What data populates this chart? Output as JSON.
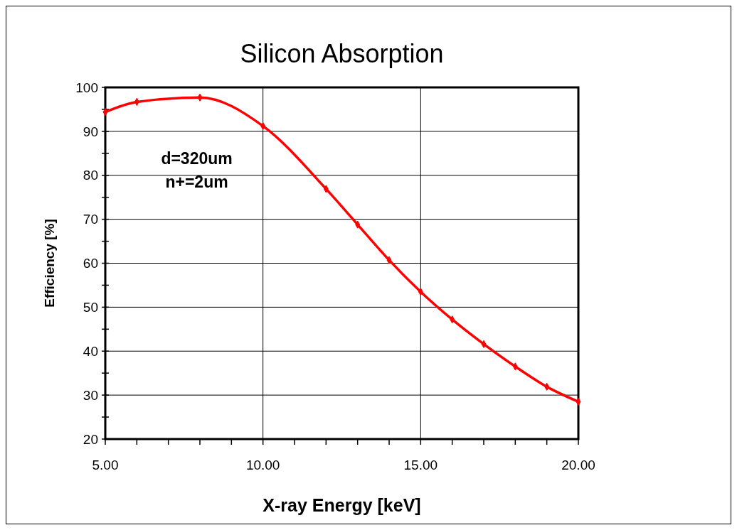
{
  "chart_data": {
    "type": "line",
    "title": "Silicon Absorption",
    "xlabel": "X-ray Energy [keV]",
    "ylabel": "Efficiency [%]",
    "x": [
      5,
      6,
      8,
      10,
      12,
      13,
      14,
      15,
      16,
      17,
      18,
      19,
      20
    ],
    "series": [
      {
        "color": "#ff0000",
        "values": [
          94.4,
          96.7,
          97.7,
          91.2,
          76.9,
          68.8,
          60.7,
          53.5,
          47.2,
          41.6,
          36.5,
          31.9,
          28.5
        ]
      }
    ],
    "xlim": [
      5,
      20
    ],
    "ylim": [
      20,
      100
    ],
    "xticks": [
      {
        "value": 5,
        "label": "5.00"
      },
      {
        "value": 6,
        "label": null
      },
      {
        "value": 7,
        "label": null
      },
      {
        "value": 8,
        "label": null
      },
      {
        "value": 9,
        "label": null
      },
      {
        "value": 10,
        "label": "10.00"
      },
      {
        "value": 11,
        "label": null
      },
      {
        "value": 12,
        "label": null
      },
      {
        "value": 13,
        "label": null
      },
      {
        "value": 14,
        "label": null
      },
      {
        "value": 15,
        "label": "15.00"
      },
      {
        "value": 16,
        "label": null
      },
      {
        "value": 17,
        "label": null
      },
      {
        "value": 18,
        "label": null
      },
      {
        "value": 19,
        "label": null
      },
      {
        "value": 20,
        "label": "20.00"
      }
    ],
    "yticks": [
      20,
      {
        "value": 25,
        "label": null
      },
      30,
      {
        "value": 35,
        "label": null
      },
      40,
      {
        "value": 45,
        "label": null
      },
      50,
      {
        "value": 55,
        "label": null
      },
      60,
      {
        "value": 65,
        "label": null
      },
      70,
      {
        "value": 75,
        "label": null
      },
      80,
      {
        "value": 85,
        "label": null
      },
      90,
      {
        "value": 95,
        "label": null
      },
      100
    ],
    "grid": true,
    "marker": "diamond",
    "line_style": "solid",
    "annotations": [
      "d=320um",
      "n+=2um"
    ]
  }
}
